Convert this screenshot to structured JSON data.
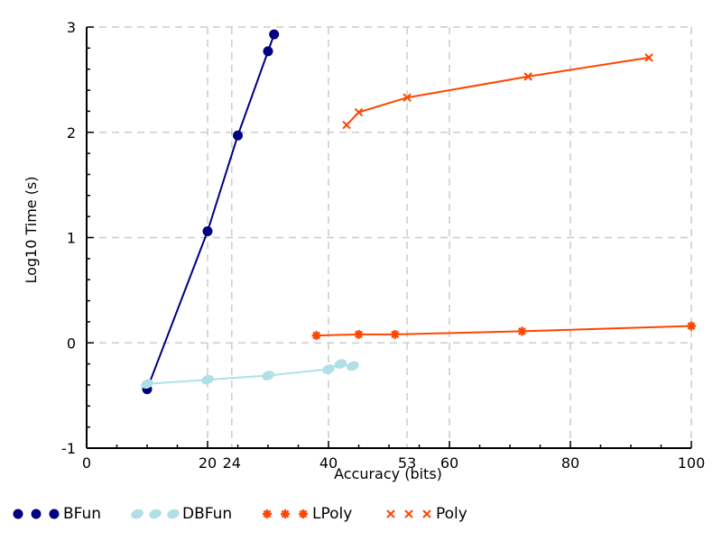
{
  "chart_data": {
    "type": "line",
    "title": "",
    "xlabel": "Accuracy (bits)",
    "ylabel": "Log10 Time (s)",
    "xlim": [
      0,
      100
    ],
    "ylim": [
      -1,
      3
    ],
    "x_ticks": [
      0,
      20,
      24,
      40,
      53,
      60,
      80,
      100
    ],
    "y_ticks": [
      -1,
      0,
      1,
      2,
      3
    ],
    "x_gridlines": [
      20,
      24,
      40,
      53,
      60,
      80,
      100
    ],
    "y_gridlines": [
      0,
      1,
      2,
      3
    ],
    "grid": true,
    "legend_position": "bottom",
    "series": [
      {
        "name": "BFun",
        "color": "#000080",
        "marker": "circle",
        "x": [
          10,
          20,
          25,
          30,
          31
        ],
        "y": [
          -0.44,
          1.06,
          1.97,
          2.77,
          2.93
        ]
      },
      {
        "name": "DBFun",
        "color": "#b0e0e6",
        "marker": "ellipse",
        "x": [
          10,
          20,
          30,
          40,
          42,
          44
        ],
        "y": [
          -0.39,
          -0.35,
          -0.31,
          -0.25,
          -0.2,
          -0.22
        ]
      },
      {
        "name": "LPoly",
        "color": "#ff4500",
        "marker": "asterisk",
        "x": [
          38,
          45,
          51,
          72,
          100
        ],
        "y": [
          0.07,
          0.08,
          0.08,
          0.11,
          0.16
        ]
      },
      {
        "name": "Poly",
        "color": "#ff4500",
        "marker": "x",
        "x": [
          43,
          45,
          53,
          73,
          93
        ],
        "y": [
          2.07,
          2.19,
          2.33,
          2.53,
          2.71
        ]
      }
    ]
  }
}
